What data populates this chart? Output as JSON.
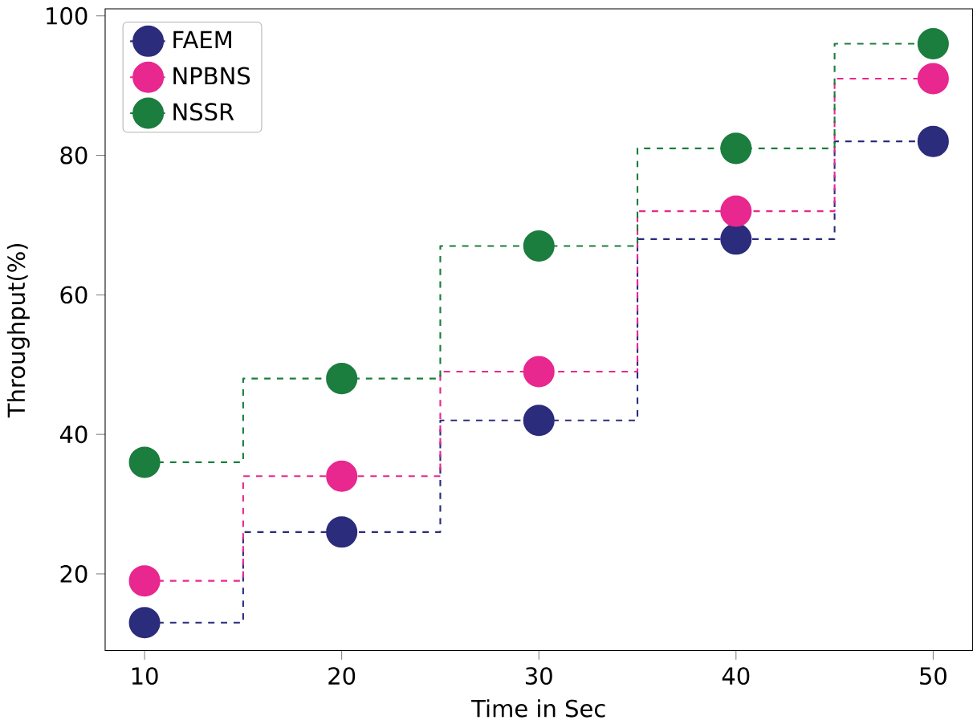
{
  "chart_data": {
    "type": "step",
    "xlabel": "Time in Sec",
    "ylabel": "Throughput(%)",
    "x": [
      10,
      20,
      30,
      40,
      50
    ],
    "series": [
      {
        "name": "FAEM",
        "color": "#2b2c7c",
        "values": [
          13,
          26,
          42,
          68,
          82
        ]
      },
      {
        "name": "NPBNS",
        "color": "#e8278f",
        "values": [
          19,
          34,
          49,
          72,
          91
        ]
      },
      {
        "name": "NSSR",
        "color": "#1b7d3e",
        "values": [
          36,
          48,
          67,
          81,
          96
        ]
      }
    ],
    "xlim": [
      8,
      52
    ],
    "ylim": [
      9,
      101
    ],
    "xticks": [
      10,
      20,
      30,
      40,
      50
    ],
    "yticks": [
      20,
      40,
      60,
      80,
      100
    ],
    "legend": "top left",
    "marker": "circle",
    "line_style": "dashed",
    "grid": false
  }
}
